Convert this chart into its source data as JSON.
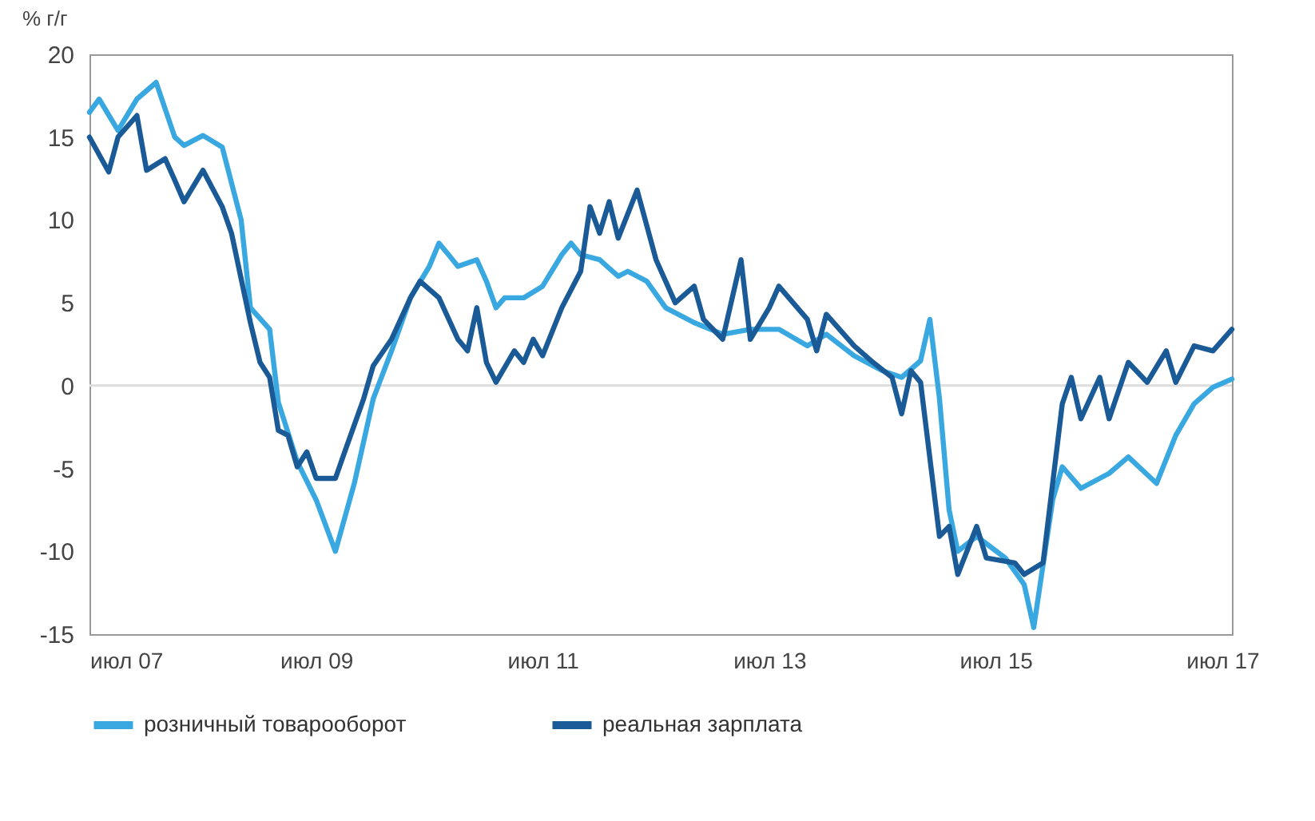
{
  "chart_data": {
    "type": "line",
    "ylabel": "% г/г",
    "xlim": [
      "2007-07",
      "2017-08"
    ],
    "xticks": [
      {
        "value": "2007-07",
        "label": "июл 07"
      },
      {
        "value": "2009-07",
        "label": "июл 09"
      },
      {
        "value": "2011-07",
        "label": "июл 11"
      },
      {
        "value": "2013-07",
        "label": "июл 13"
      },
      {
        "value": "2015-07",
        "label": "июл 15"
      },
      {
        "value": "2017-07",
        "label": "июл 17"
      }
    ],
    "ylim": [
      -15,
      20
    ],
    "yticks": [
      -15,
      -10,
      -5,
      0,
      5,
      10,
      15,
      20
    ],
    "grid": false,
    "legend": "bottom",
    "line_style": "solid",
    "ref_lines": [
      {
        "axis": "y",
        "value": 0,
        "color": "#dddddd"
      }
    ],
    "series": [
      {
        "name": "розничный товарооборот",
        "color": "#3aa8e0",
        "x": [
          "2007-07",
          "2007-08",
          "2007-10",
          "2007-12",
          "2008-02",
          "2008-04",
          "2008-05",
          "2008-07",
          "2008-09",
          "2008-11",
          "2008-12",
          "2009-02",
          "2009-03",
          "2009-05",
          "2009-07",
          "2009-09",
          "2009-11",
          "2010-01",
          "2010-03",
          "2010-05",
          "2010-07",
          "2010-08",
          "2010-09",
          "2010-10",
          "2010-12",
          "2011-01",
          "2011-02",
          "2011-03",
          "2011-05",
          "2011-07",
          "2011-09",
          "2011-10",
          "2011-11",
          "2012-01",
          "2012-03",
          "2012-04",
          "2012-06",
          "2012-08",
          "2012-11",
          "2013-02",
          "2013-05",
          "2013-08",
          "2013-11",
          "2014-01",
          "2014-04",
          "2014-07",
          "2014-09",
          "2014-11",
          "2014-12",
          "2015-01",
          "2015-02",
          "2015-03",
          "2015-05",
          "2015-08",
          "2015-10",
          "2015-11",
          "2016-01",
          "2016-02",
          "2016-04",
          "2016-07",
          "2016-09",
          "2016-12",
          "2017-02",
          "2017-04",
          "2017-06",
          "2017-08"
        ],
        "values": [
          16.5,
          17.3,
          15.4,
          17.3,
          18.3,
          15,
          14.5,
          15.1,
          14.4,
          10,
          4.7,
          3.4,
          -1,
          -4.6,
          -6.9,
          -10,
          -5.9,
          -0.8,
          2.1,
          5.3,
          7.2,
          8.6,
          7.9,
          7.2,
          7.6,
          6.3,
          4.7,
          5.3,
          5.3,
          6,
          7.9,
          8.6,
          7.9,
          7.6,
          6.6,
          6.9,
          6.3,
          4.7,
          3.8,
          3.1,
          3.4,
          3.4,
          2.4,
          3.1,
          1.8,
          0.9,
          0.5,
          1.5,
          4,
          -0.8,
          -7.5,
          -10,
          -9.1,
          -10.4,
          -12,
          -14.6,
          -6.9,
          -4.9,
          -6.2,
          -5.3,
          -4.3,
          -5.9,
          -3,
          -1.1,
          -0.1,
          0.4
        ]
      },
      {
        "name": "реальная зарплата",
        "color": "#1a5a96",
        "x": [
          "2007-07",
          "2007-09",
          "2007-10",
          "2007-12",
          "2008-01",
          "2008-03",
          "2008-04",
          "2008-05",
          "2008-07",
          "2008-09",
          "2008-10",
          "2008-12",
          "2009-01",
          "2009-02",
          "2009-03",
          "2009-04",
          "2009-05",
          "2009-06",
          "2009-07",
          "2009-09",
          "2009-10",
          "2009-12",
          "2010-01",
          "2010-03",
          "2010-05",
          "2010-06",
          "2010-08",
          "2010-10",
          "2010-11",
          "2010-12",
          "2011-01",
          "2011-02",
          "2011-04",
          "2011-05",
          "2011-06",
          "2011-07",
          "2011-09",
          "2011-11",
          "2011-12",
          "2012-01",
          "2012-02",
          "2012-03",
          "2012-05",
          "2012-07",
          "2012-09",
          "2012-11",
          "2012-12",
          "2013-02",
          "2013-04",
          "2013-05",
          "2013-07",
          "2013-08",
          "2013-11",
          "2013-12",
          "2014-01",
          "2014-04",
          "2014-06",
          "2014-08",
          "2014-09",
          "2014-10",
          "2014-11",
          "2015-01",
          "2015-02",
          "2015-03",
          "2015-05",
          "2015-06",
          "2015-09",
          "2015-10",
          "2015-12",
          "2016-02",
          "2016-03",
          "2016-04",
          "2016-06",
          "2016-07",
          "2016-09",
          "2016-11",
          "2017-01",
          "2017-02",
          "2017-04",
          "2017-06",
          "2017-08"
        ],
        "values": [
          15,
          12.9,
          15,
          16.3,
          13,
          13.7,
          12.4,
          11.1,
          13,
          10.8,
          9.2,
          3.8,
          1.4,
          0.5,
          -2.7,
          -3,
          -4.9,
          -4,
          -5.6,
          -5.6,
          -4,
          -0.8,
          1.2,
          2.8,
          5.3,
          6.3,
          5.3,
          2.8,
          2.1,
          4.7,
          1.4,
          0.2,
          2.1,
          1.4,
          2.8,
          1.8,
          4.7,
          6.9,
          10.8,
          9.2,
          11.1,
          8.9,
          11.8,
          7.6,
          5,
          6,
          4,
          2.8,
          7.6,
          2.8,
          4.7,
          6,
          4,
          2.1,
          4.3,
          2.4,
          1.4,
          0.5,
          -1.7,
          0.9,
          0.2,
          -9.1,
          -8.5,
          -11.4,
          -8.5,
          -10.4,
          -10.7,
          -11.4,
          -10.7,
          -1.1,
          0.5,
          -2,
          0.5,
          -2,
          1.4,
          0.2,
          2.1,
          0.2,
          2.4,
          2.1,
          3.4
        ]
      }
    ]
  }
}
